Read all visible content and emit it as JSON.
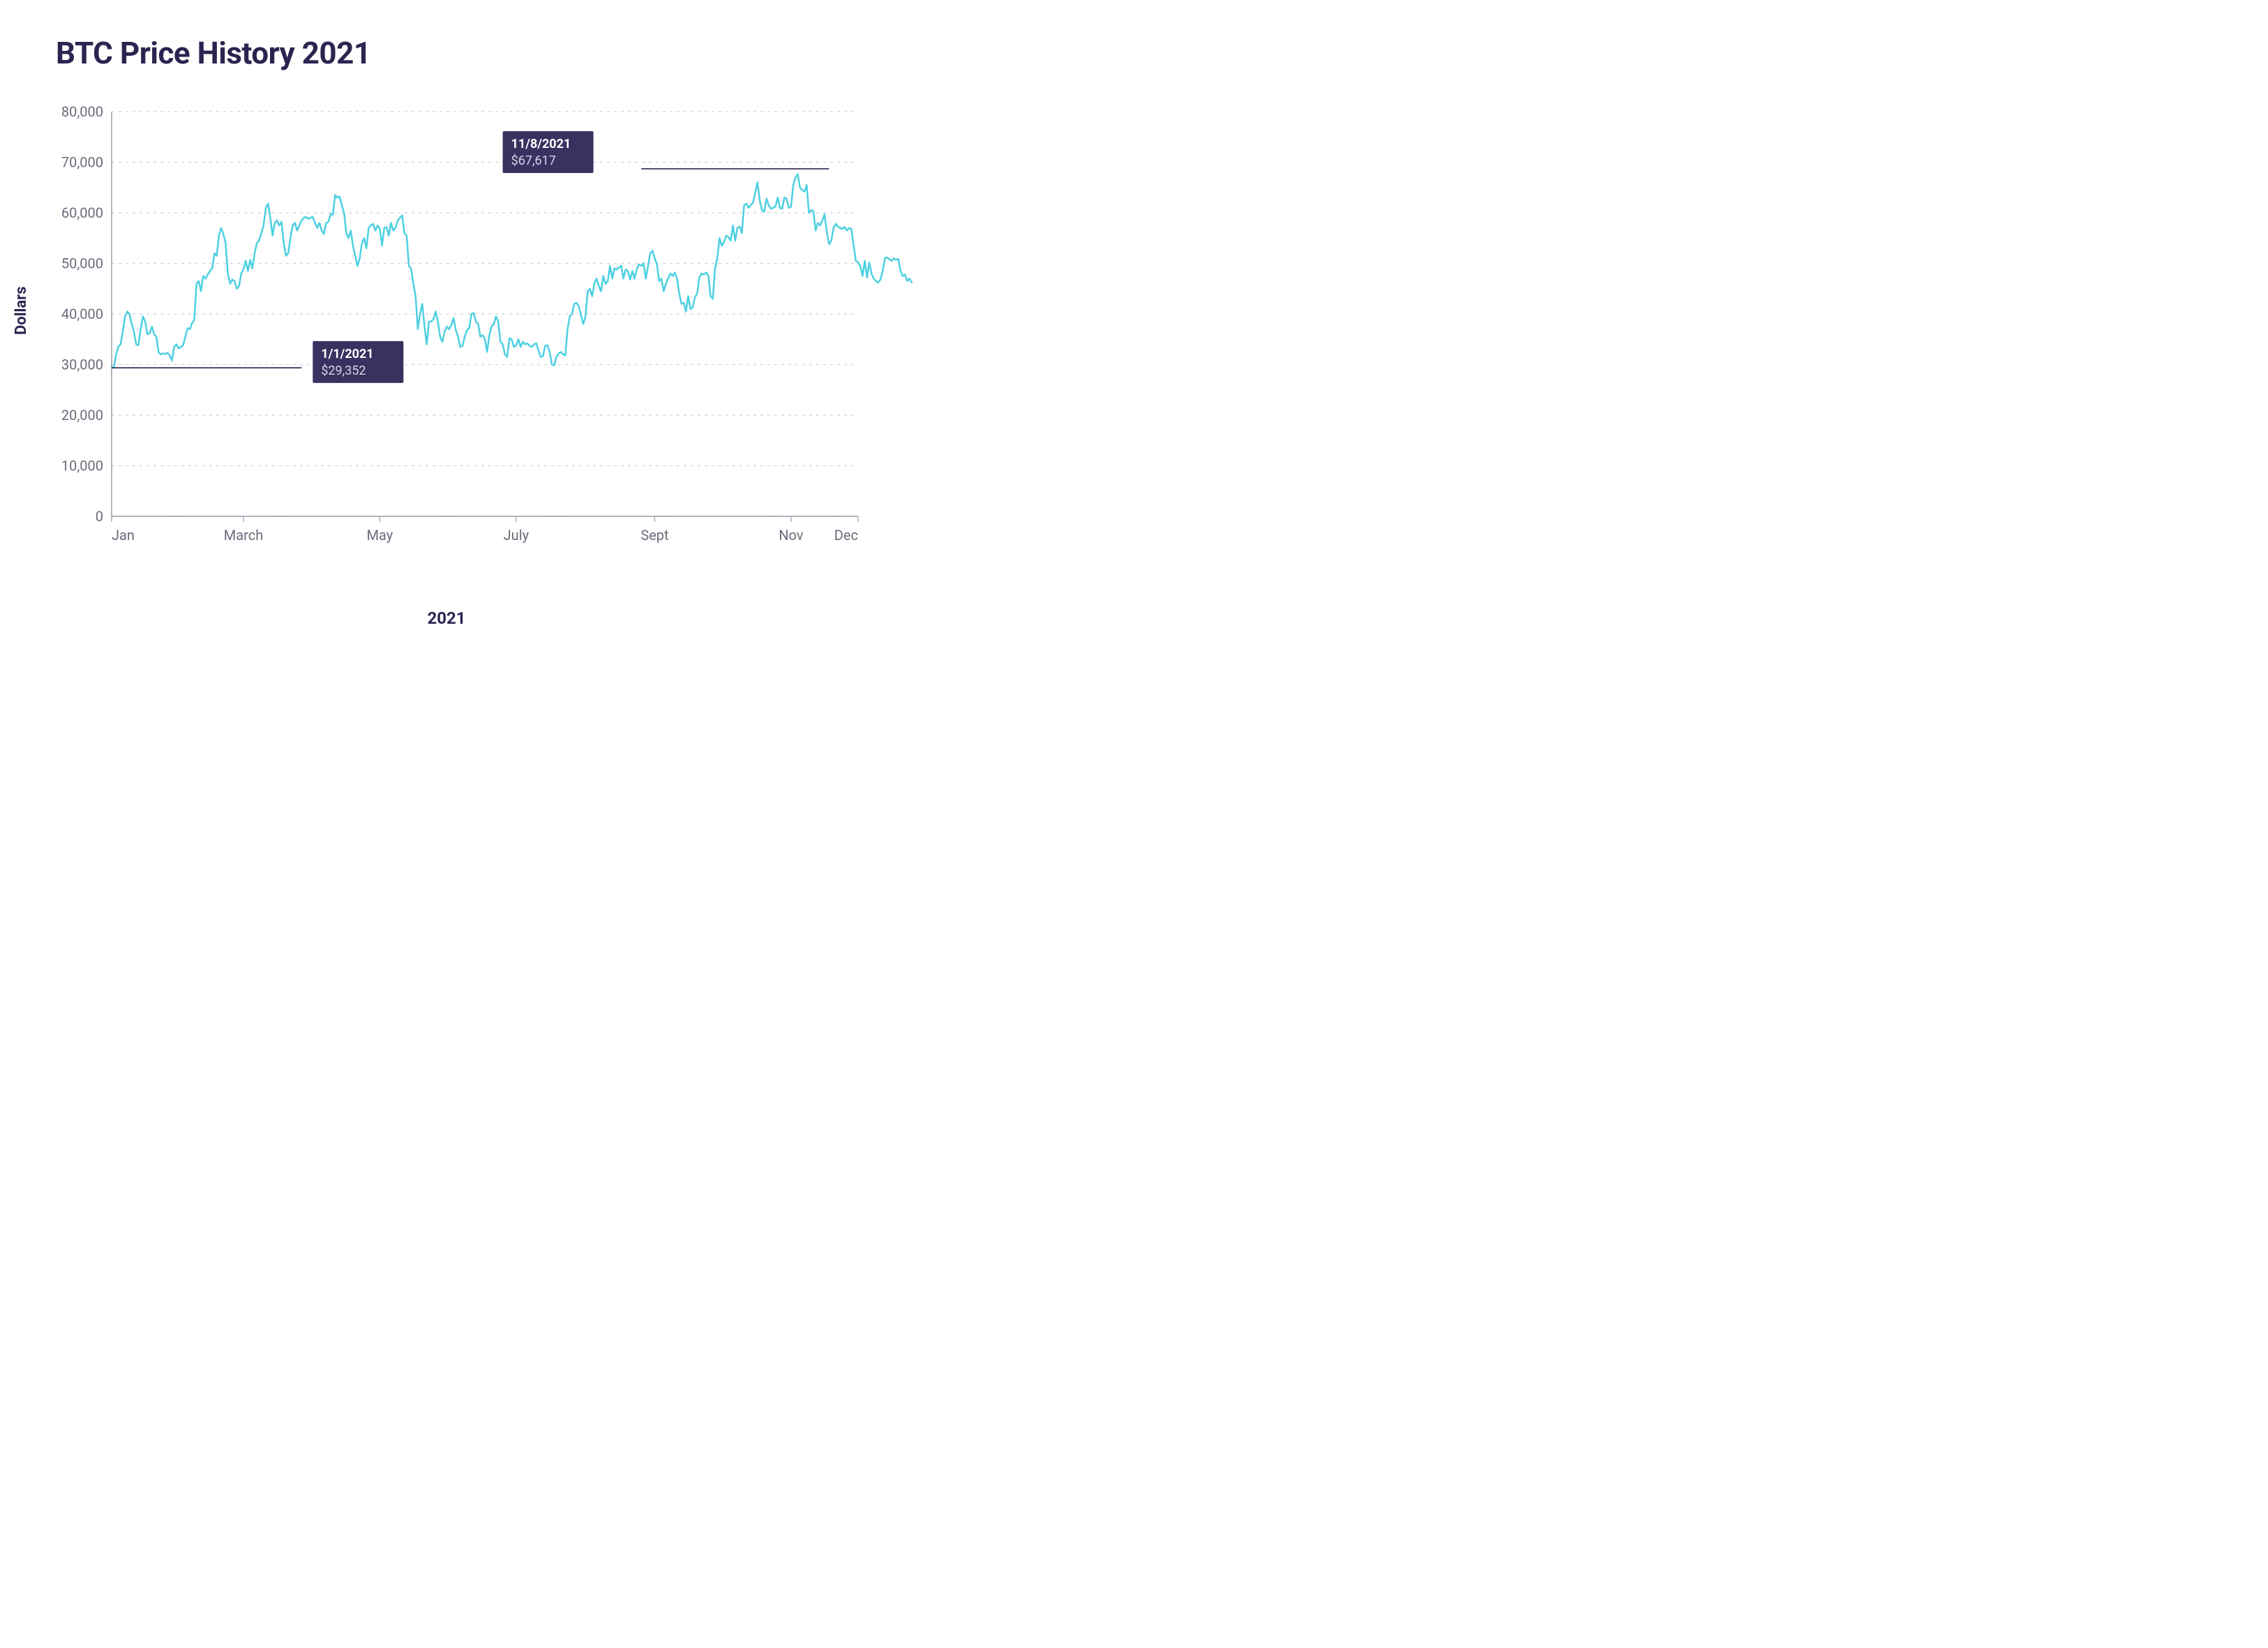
{
  "title": "BTC Price History 2021",
  "ylabel": "Dollars",
  "xlabel": "2021",
  "chart": {
    "type": "line",
    "background_color": "#ffffff",
    "line_color": "#4dd0e1",
    "line_width": 2.5,
    "grid_color": "#d0d0d8",
    "axis_color": "#9a9aaa",
    "tick_color": "#6a6a7a",
    "callout_bg": "#3a3160",
    "callout_line_color": "#2a2550",
    "ylim": [
      0,
      80000
    ],
    "ytick_step": 10000,
    "yticks": [
      {
        "v": 0,
        "label": "0"
      },
      {
        "v": 10000,
        "label": "10,000"
      },
      {
        "v": 20000,
        "label": "20,000"
      },
      {
        "v": 30000,
        "label": "30,000"
      },
      {
        "v": 40000,
        "label": "40,000"
      },
      {
        "v": 50000,
        "label": "50,000"
      },
      {
        "v": 60000,
        "label": "60,000"
      },
      {
        "v": 70000,
        "label": "70,000"
      },
      {
        "v": 80000,
        "label": "80,000"
      }
    ],
    "xlim": [
      0,
      334
    ],
    "xticks": [
      {
        "d": 0,
        "label": "Jan"
      },
      {
        "d": 59,
        "label": "March"
      },
      {
        "d": 120,
        "label": "May"
      },
      {
        "d": 181,
        "label": "July"
      },
      {
        "d": 243,
        "label": "Sept"
      },
      {
        "d": 304,
        "label": "Nov"
      },
      {
        "d": 334,
        "label": "Dec"
      }
    ],
    "series": [
      29352,
      29500,
      32000,
      33500,
      34000,
      36500,
      39500,
      40500,
      40000,
      38000,
      36500,
      34000,
      33800,
      37000,
      39500,
      38500,
      36000,
      36200,
      37500,
      36000,
      35500,
      32500,
      32000,
      32200,
      32100,
      32300,
      31800,
      30800,
      33500,
      34000,
      33200,
      33500,
      33800,
      35500,
      37200,
      37000,
      38200,
      38800,
      46000,
      46500,
      44500,
      47500,
      47000,
      47800,
      48500,
      49000,
      52000,
      51500,
      55500,
      57000,
      55800,
      54000,
      48000,
      46000,
      46800,
      46500,
      45000,
      45500,
      48000,
      48800,
      50500,
      48500,
      50700,
      49000,
      52000,
      54000,
      54500,
      56000,
      57500,
      61000,
      61800,
      59000,
      55500,
      58000,
      58500,
      57500,
      58200,
      54000,
      51500,
      52000,
      55000,
      57500,
      58000,
      56500,
      57500,
      58500,
      59000,
      59200,
      58800,
      59000,
      59200,
      58000,
      57000,
      58000,
      56500,
      55800,
      58000,
      58200,
      59800,
      59600,
      63500,
      63000,
      63200,
      61500,
      60000,
      56000,
      55000,
      56500,
      53500,
      51500,
      49500,
      51000,
      54000,
      55000,
      53000,
      57000,
      57500,
      57800,
      56500,
      57500,
      56800,
      53500,
      57000,
      57200,
      55500,
      58000,
      56500,
      57000,
      58500,
      59000,
      59500,
      56000,
      55500,
      49500,
      49000,
      46000,
      43500,
      37000,
      40000,
      42000,
      37500,
      34000,
      38500,
      38500,
      39000,
      40500,
      38500,
      35500,
      34500,
      36500,
      37500,
      37000,
      37800,
      39200,
      36800,
      35500,
      33500,
      33700,
      35500,
      36800,
      37200,
      40000,
      40200,
      38500,
      38000,
      35500,
      35800,
      35000,
      32500,
      35800,
      37500,
      38000,
      39500,
      38500,
      34500,
      34000,
      32000,
      31500,
      35200,
      35000,
      33500,
      33800,
      35000,
      33500,
      34500,
      34000,
      34200,
      33700,
      33500,
      34000,
      34200,
      32800,
      31500,
      31700,
      33700,
      33800,
      32500,
      30000,
      29800,
      31500,
      32200,
      32500,
      32000,
      31800,
      37000,
      39500,
      40000,
      42000,
      42200,
      41500,
      39800,
      38000,
      39500,
      44500,
      45000,
      43500,
      46000,
      47000,
      45500,
      44500,
      47500,
      46000,
      46500,
      49500,
      47000,
      49000,
      48800,
      49200,
      49500,
      47000,
      48800,
      48500,
      46800,
      48500,
      47000,
      48900,
      49800,
      49500,
      50000,
      47000,
      49500,
      52000,
      52500,
      51000,
      49800,
      46500,
      47000,
      44500,
      46000,
      47000,
      48000,
      47500,
      48200,
      47000,
      44000,
      42000,
      42200,
      40500,
      43500,
      41000,
      41300,
      43300,
      44000,
      47200,
      48000,
      47800,
      48200,
      47500,
      43500,
      43000,
      49000,
      51000,
      55000,
      53500,
      54200,
      55500,
      55200,
      54500,
      57500,
      54500,
      57000,
      57300,
      56000,
      61500,
      61800,
      61000,
      61500,
      62000,
      64000,
      66000,
      62500,
      60500,
      60200,
      62800,
      61500,
      60800,
      61000,
      61200,
      63000,
      61000,
      60800,
      63000,
      62800,
      61000,
      61200,
      65500,
      67000,
      67617,
      65000,
      64500,
      64200,
      65500,
      60000,
      60500,
      60300,
      56500,
      58000,
      57500,
      58500,
      59700,
      56200,
      53800,
      54500,
      57000,
      57800,
      57300,
      57000,
      56800,
      57200,
      56500,
      57000,
      56800,
      53500,
      50500,
      50200,
      49500,
      47500,
      50500,
      47200,
      50200,
      48000,
      47000,
      46500,
      46200,
      46800,
      48500,
      51000,
      51200,
      50800,
      50500,
      51000,
      50700,
      50900,
      48500,
      47500,
      47800,
      46500,
      47000,
      46200
    ],
    "callouts": [
      {
        "date_label": "1/1/2021",
        "value_label": "$29,352",
        "line_day_from": 0,
        "line_day_to": 85,
        "line_value": 29352,
        "box_day": 90,
        "box_value": 30500
      },
      {
        "date_label": "11/8/2021",
        "value_label": "$67,617",
        "line_day_from": 237,
        "line_day_to": 321,
        "line_value": 68700,
        "box_day": 175,
        "box_value": 72000
      }
    ]
  }
}
